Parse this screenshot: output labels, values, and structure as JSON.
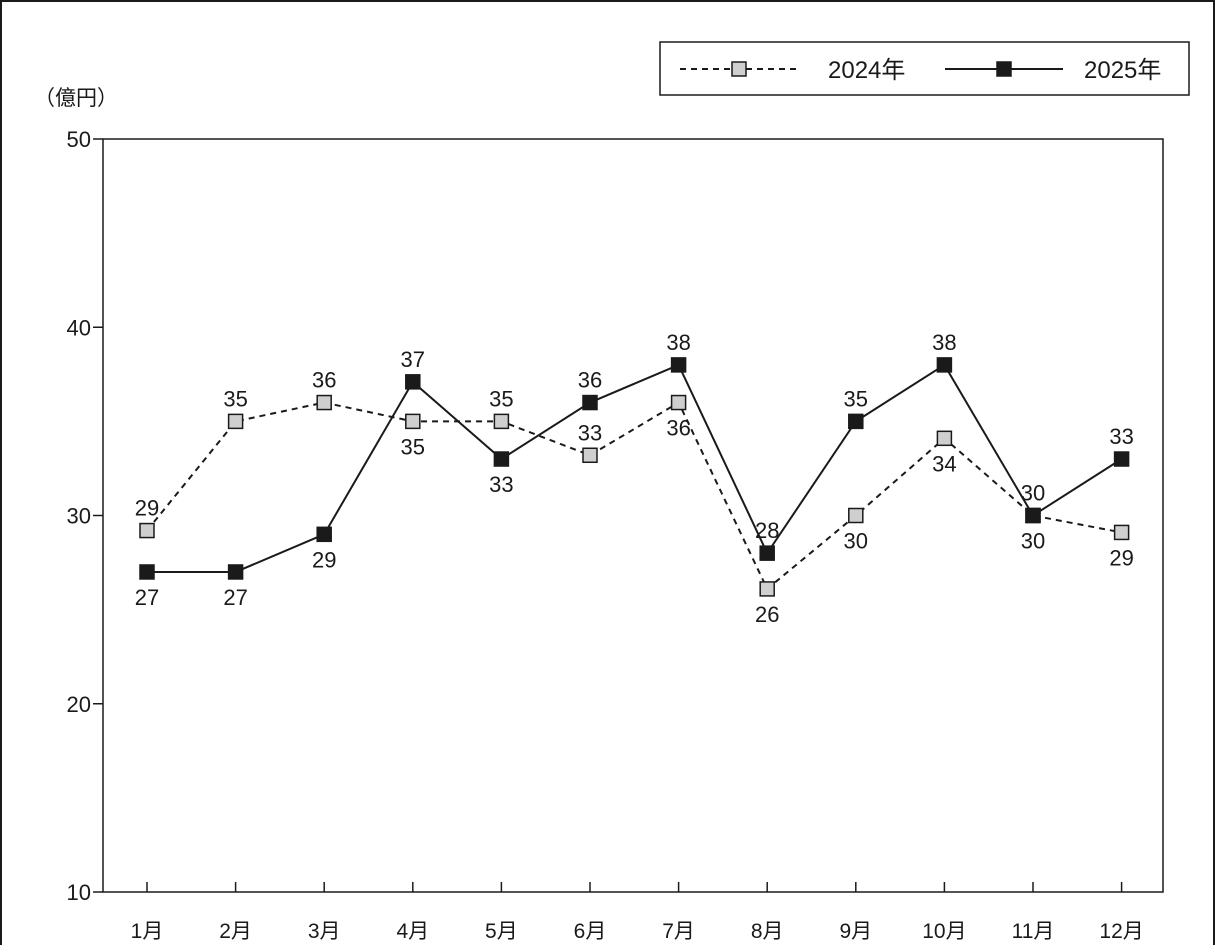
{
  "chart_data": {
    "type": "line",
    "ylabel": "（億円）",
    "xlabel": "",
    "ylim": [
      10,
      50
    ],
    "yticks": [
      10,
      20,
      30,
      40,
      50
    ],
    "grid": false,
    "legend_position": "top-right",
    "categories": [
      "1月",
      "2月",
      "3月",
      "4月",
      "5月",
      "6月",
      "7月",
      "8月",
      "9月",
      "10月",
      "11月",
      "12月"
    ],
    "series": [
      {
        "name": "2024年",
        "style": "dashed",
        "marker": "square-light",
        "color": "#1a1a1a",
        "marker_fill": "#cfcfcf",
        "values": [
          29.2,
          35.0,
          36.0,
          35.0,
          35.0,
          33.2,
          36.0,
          26.1,
          30.0,
          34.1,
          30.0,
          29.1
        ],
        "labels": [
          "29",
          "35",
          "36",
          "35",
          "35",
          "33",
          "36",
          "26",
          "30",
          "34",
          "30",
          "29"
        ],
        "label_positions": [
          "above",
          "above",
          "above",
          "below",
          "above",
          "above",
          "below",
          "below",
          "below",
          "below",
          "above",
          "below"
        ]
      },
      {
        "name": "2025年",
        "style": "solid",
        "marker": "square-dark",
        "color": "#1a1a1a",
        "marker_fill": "#1a1a1a",
        "values": [
          27.0,
          27.0,
          29.0,
          37.1,
          33.0,
          36.0,
          38.0,
          28.0,
          35.0,
          38.0,
          30.0,
          33.0
        ],
        "labels": [
          "27",
          "27",
          "29",
          "37",
          "33",
          "36",
          "38",
          "28",
          "35",
          "38",
          "30",
          "33"
        ],
        "label_positions": [
          "below",
          "below",
          "below",
          "above",
          "below",
          "above",
          "above",
          "above",
          "above",
          "above",
          "below",
          "above"
        ]
      }
    ]
  }
}
